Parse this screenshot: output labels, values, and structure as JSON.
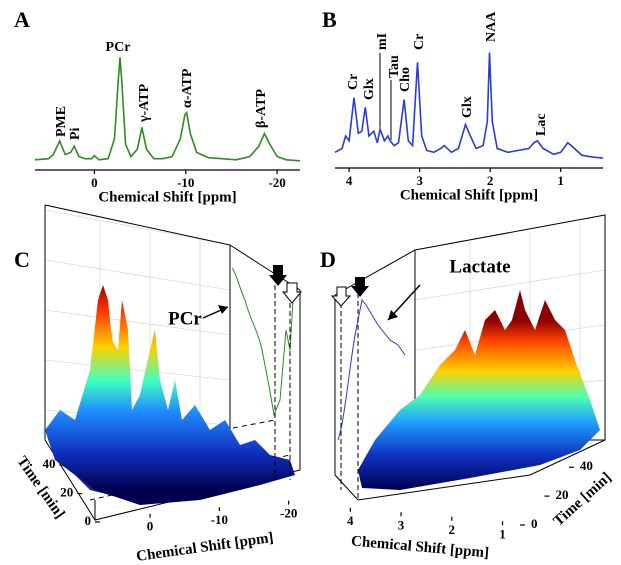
{
  "chart_data": [
    {
      "type": "line",
      "panel": "A",
      "color": "#2e8b22",
      "xlabel": "Chemical Shift [ppm]",
      "xlim": [
        6.5,
        -22.5
      ],
      "xticks": [
        0,
        -10,
        -20
      ],
      "ylim": [
        0,
        110
      ],
      "x": [
        6.5,
        5,
        4.5,
        3.8,
        3.2,
        2.6,
        2.2,
        1.7,
        1,
        0.3,
        0,
        -0.5,
        -1.5,
        -2.2,
        -2.6,
        -2.8,
        -3.0,
        -3.4,
        -4,
        -4.7,
        -5.2,
        -5.7,
        -6.5,
        -7.5,
        -8.5,
        -9.4,
        -9.9,
        -10.1,
        -10.5,
        -11.2,
        -12.5,
        -14,
        -15.5,
        -17,
        -18,
        -18.6,
        -19.2,
        -20,
        -21,
        -22.5
      ],
      "values": [
        5,
        6,
        10,
        23,
        10,
        12,
        18,
        8,
        6,
        6,
        9,
        5,
        6,
        25,
        80,
        103,
        80,
        20,
        8,
        15,
        36,
        15,
        6,
        6,
        8,
        25,
        48,
        50,
        30,
        12,
        7,
        6,
        5,
        8,
        18,
        30,
        20,
        8,
        5,
        4
      ],
      "peak_labels": [
        "PME",
        "Pi",
        "PCr",
        "γ-ATP",
        "α-ATP",
        "β-ATP"
      ]
    },
    {
      "type": "line",
      "panel": "B",
      "color": "#2a3bd6",
      "xlabel": "Chemical Shift [ppm]",
      "xlim": [
        4.2,
        0.4
      ],
      "xticks": [
        4,
        3,
        2,
        1
      ],
      "ylim": [
        0,
        120
      ],
      "x": [
        4.2,
        4.1,
        4.05,
        4.0,
        3.93,
        3.87,
        3.82,
        3.77,
        3.72,
        3.65,
        3.6,
        3.56,
        3.5,
        3.45,
        3.42,
        3.36,
        3.3,
        3.22,
        3.16,
        3.1,
        3.03,
        2.97,
        2.9,
        2.8,
        2.7,
        2.65,
        2.55,
        2.45,
        2.35,
        2.28,
        2.2,
        2.1,
        2.04,
        2.01,
        1.97,
        1.9,
        1.75,
        1.6,
        1.45,
        1.38,
        1.33,
        1.25,
        1.1,
        1.0,
        0.9,
        0.85,
        0.7,
        0.55,
        0.4
      ],
      "values": [
        8,
        12,
        25,
        20,
        65,
        28,
        30,
        55,
        25,
        30,
        18,
        32,
        20,
        25,
        20,
        15,
        18,
        63,
        20,
        15,
        102,
        25,
        10,
        8,
        12,
        15,
        8,
        12,
        37,
        25,
        12,
        15,
        40,
        112,
        40,
        12,
        8,
        10,
        12,
        18,
        20,
        12,
        6,
        8,
        18,
        15,
        5,
        3,
        2
      ],
      "peak_labels": [
        "Cr",
        "Glx",
        "mI",
        "Tau",
        "Cho",
        "Cr",
        "Glx",
        "NAA",
        "Lac"
      ]
    },
    {
      "type": "surface3d",
      "panel": "C",
      "xlabel": "Chemical Shift [ppm]",
      "ylabel": "Time [min]",
      "xlim": [
        6.5,
        -22.5
      ],
      "xticks": [
        0,
        -10,
        -20
      ],
      "ylim": [
        0,
        45
      ],
      "yticks": [
        0,
        20,
        40
      ],
      "annotation": "PCr"
    },
    {
      "type": "surface3d",
      "panel": "D",
      "xlabel": "Chemical Shift [ppm]",
      "ylabel": "Time [min]",
      "xlim": [
        4.4,
        0.4
      ],
      "xticks": [
        4,
        3,
        2,
        1
      ],
      "ylim": [
        0,
        45
      ],
      "yticks": [
        0,
        20,
        40
      ],
      "annotation": "Lactate"
    }
  ]
}
